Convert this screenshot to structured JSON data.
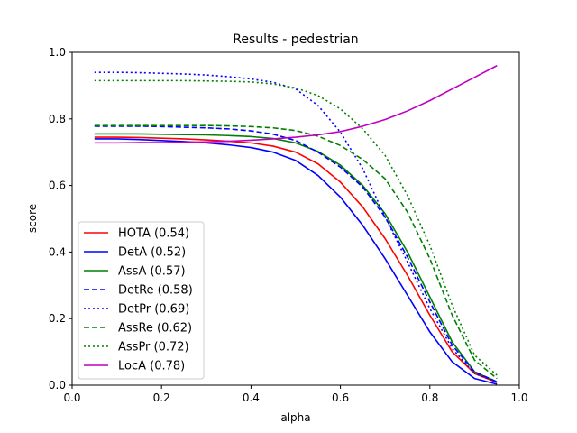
{
  "chart_data": {
    "type": "line",
    "title": "Results - pedestrian",
    "xlabel": "alpha",
    "ylabel": "score",
    "xlim": [
      0.0,
      1.0
    ],
    "ylim": [
      0.0,
      1.0
    ],
    "x_ticks": [
      "0.0",
      "0.2",
      "0.4",
      "0.6",
      "0.8",
      "1.0"
    ],
    "y_ticks": [
      "0.0",
      "0.2",
      "0.4",
      "0.6",
      "0.8",
      "1.0"
    ],
    "grid": false,
    "legend_position": "lower-left",
    "x": [
      0.05,
      0.1,
      0.15,
      0.2,
      0.25,
      0.3,
      0.35,
      0.4,
      0.45,
      0.5,
      0.55,
      0.6,
      0.65,
      0.7,
      0.75,
      0.8,
      0.85,
      0.9,
      0.95
    ],
    "series": [
      {
        "name": "HOTA (0.54)",
        "color": "#ff0000",
        "dash": "solid",
        "values": [
          0.745,
          0.745,
          0.744,
          0.742,
          0.74,
          0.737,
          0.733,
          0.728,
          0.718,
          0.7,
          0.665,
          0.61,
          0.535,
          0.44,
          0.33,
          0.21,
          0.1,
          0.035,
          0.008
        ]
      },
      {
        "name": "DetA (0.52)",
        "color": "#0000ff",
        "dash": "solid",
        "values": [
          0.74,
          0.74,
          0.738,
          0.735,
          0.732,
          0.728,
          0.722,
          0.714,
          0.7,
          0.675,
          0.63,
          0.565,
          0.48,
          0.38,
          0.27,
          0.16,
          0.07,
          0.02,
          0.003
        ]
      },
      {
        "name": "AssA (0.57)",
        "color": "#008000",
        "dash": "solid",
        "values": [
          0.755,
          0.755,
          0.755,
          0.754,
          0.753,
          0.752,
          0.75,
          0.747,
          0.741,
          0.728,
          0.702,
          0.661,
          0.6,
          0.515,
          0.4,
          0.265,
          0.13,
          0.04,
          0.01
        ]
      },
      {
        "name": "DetRe (0.58)",
        "color": "#0000ff",
        "dash": "dashed",
        "values": [
          0.778,
          0.778,
          0.778,
          0.777,
          0.775,
          0.773,
          0.77,
          0.764,
          0.754,
          0.735,
          0.7,
          0.655,
          0.595,
          0.505,
          0.385,
          0.25,
          0.12,
          0.04,
          0.01
        ]
      },
      {
        "name": "DetPr (0.69)",
        "color": "#0000ff",
        "dash": "dotted",
        "values": [
          0.94,
          0.94,
          0.939,
          0.937,
          0.935,
          0.932,
          0.927,
          0.92,
          0.91,
          0.89,
          0.84,
          0.76,
          0.65,
          0.505,
          0.37,
          0.23,
          0.11,
          0.035,
          0.01
        ]
      },
      {
        "name": "AssRe (0.62)",
        "color": "#008000",
        "dash": "dashed",
        "values": [
          0.78,
          0.78,
          0.78,
          0.78,
          0.78,
          0.78,
          0.779,
          0.777,
          0.773,
          0.765,
          0.748,
          0.72,
          0.678,
          0.62,
          0.52,
          0.38,
          0.21,
          0.075,
          0.02
        ]
      },
      {
        "name": "AssPr (0.72)",
        "color": "#008000",
        "dash": "dotted",
        "values": [
          0.915,
          0.915,
          0.915,
          0.915,
          0.915,
          0.914,
          0.913,
          0.911,
          0.905,
          0.893,
          0.87,
          0.83,
          0.77,
          0.69,
          0.57,
          0.42,
          0.24,
          0.09,
          0.03
        ]
      },
      {
        "name": "LocA (0.78)",
        "color": "#bf00bf",
        "dash": "solid",
        "values": [
          0.728,
          0.728,
          0.729,
          0.729,
          0.73,
          0.731,
          0.733,
          0.736,
          0.74,
          0.745,
          0.752,
          0.762,
          0.778,
          0.798,
          0.824,
          0.855,
          0.89,
          0.925,
          0.96
        ]
      }
    ]
  }
}
